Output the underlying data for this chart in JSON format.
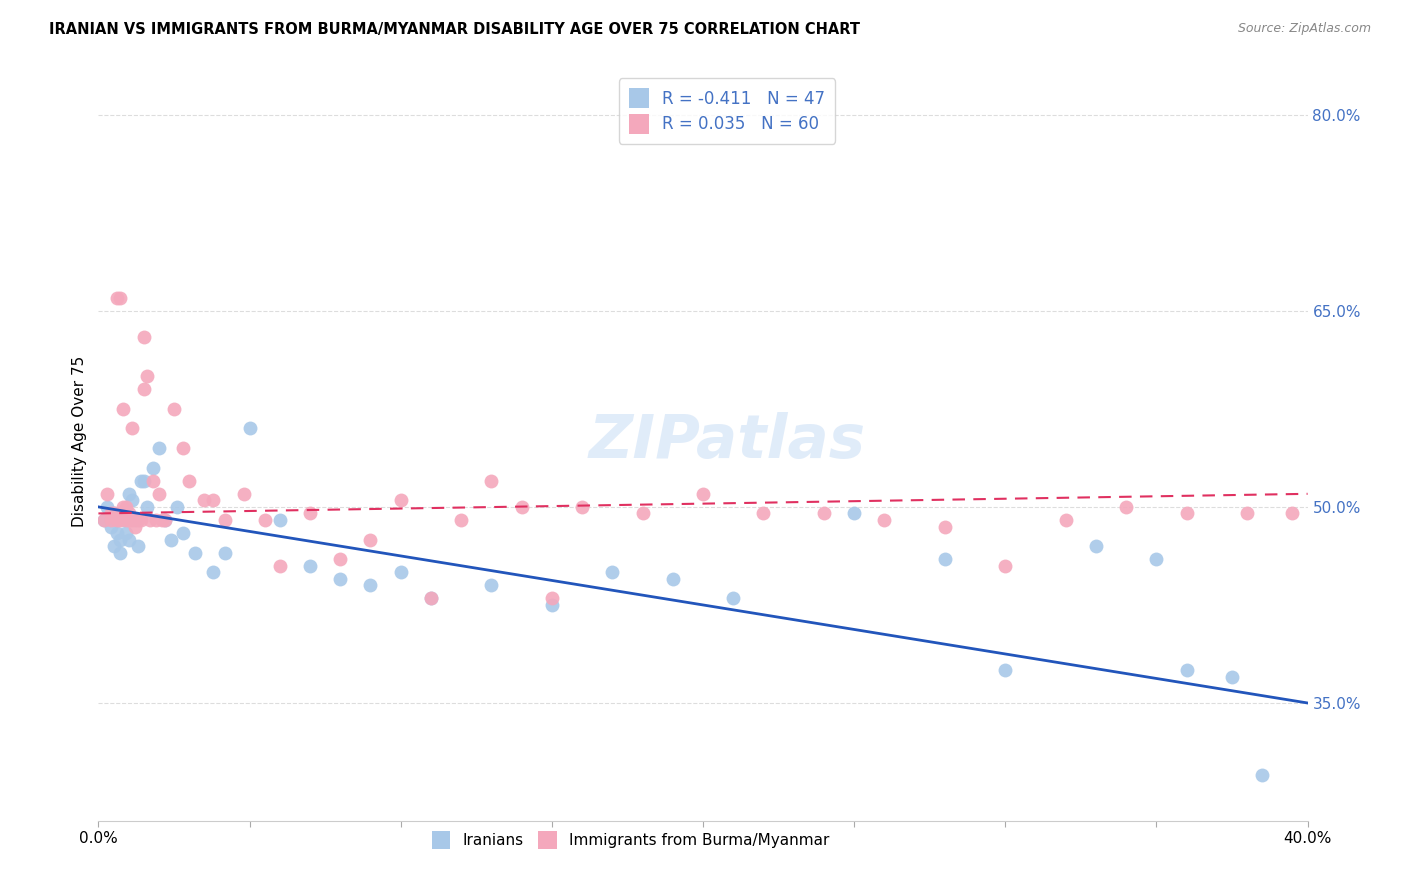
{
  "title": "IRANIAN VS IMMIGRANTS FROM BURMA/MYANMAR DISABILITY AGE OVER 75 CORRELATION CHART",
  "source": "Source: ZipAtlas.com",
  "ylabel": "Disability Age Over 75",
  "xlim": [
    0.0,
    0.4
  ],
  "ylim": [
    0.26,
    0.84
  ],
  "xticks": [
    0.0,
    0.05,
    0.1,
    0.15,
    0.2,
    0.25,
    0.3,
    0.35,
    0.4
  ],
  "xticklabels": [
    "0.0%",
    "",
    "",
    "",
    "",
    "",
    "",
    "",
    "40.0%"
  ],
  "yticks_right": [
    0.35,
    0.5,
    0.65,
    0.8
  ],
  "ytick_right_labels": [
    "35.0%",
    "50.0%",
    "65.0%",
    "80.0%"
  ],
  "blue_color": "#a8c8e8",
  "pink_color": "#f4a8bc",
  "blue_line_color": "#2255bb",
  "pink_line_color": "#e03060",
  "legend_blue_label": "R = -0.411   N = 47",
  "legend_pink_label": "R = 0.035   N = 60",
  "legend_iranians": "Iranians",
  "legend_burma": "Immigrants from Burma/Myanmar",
  "watermark": "ZIPatlas",
  "iranians_x": [
    0.002,
    0.003,
    0.004,
    0.005,
    0.005,
    0.006,
    0.007,
    0.007,
    0.008,
    0.009,
    0.01,
    0.01,
    0.011,
    0.012,
    0.013,
    0.014,
    0.015,
    0.016,
    0.018,
    0.02,
    0.022,
    0.024,
    0.026,
    0.028,
    0.032,
    0.038,
    0.042,
    0.05,
    0.06,
    0.07,
    0.08,
    0.09,
    0.1,
    0.11,
    0.13,
    0.15,
    0.17,
    0.19,
    0.21,
    0.25,
    0.28,
    0.3,
    0.33,
    0.35,
    0.36,
    0.375,
    0.385
  ],
  "iranians_y": [
    0.49,
    0.5,
    0.485,
    0.495,
    0.47,
    0.48,
    0.475,
    0.465,
    0.49,
    0.48,
    0.51,
    0.475,
    0.505,
    0.49,
    0.47,
    0.52,
    0.52,
    0.5,
    0.53,
    0.545,
    0.49,
    0.475,
    0.5,
    0.48,
    0.465,
    0.45,
    0.465,
    0.56,
    0.49,
    0.455,
    0.445,
    0.44,
    0.45,
    0.43,
    0.44,
    0.425,
    0.45,
    0.445,
    0.43,
    0.495,
    0.46,
    0.375,
    0.47,
    0.46,
    0.375,
    0.37,
    0.295
  ],
  "burma_x": [
    0.002,
    0.003,
    0.004,
    0.004,
    0.005,
    0.006,
    0.006,
    0.007,
    0.007,
    0.008,
    0.008,
    0.009,
    0.009,
    0.01,
    0.01,
    0.011,
    0.011,
    0.012,
    0.013,
    0.014,
    0.015,
    0.015,
    0.016,
    0.017,
    0.018,
    0.019,
    0.02,
    0.021,
    0.022,
    0.025,
    0.028,
    0.03,
    0.035,
    0.038,
    0.042,
    0.048,
    0.055,
    0.06,
    0.07,
    0.08,
    0.09,
    0.1,
    0.11,
    0.12,
    0.13,
    0.14,
    0.15,
    0.16,
    0.18,
    0.2,
    0.22,
    0.24,
    0.26,
    0.28,
    0.3,
    0.32,
    0.34,
    0.36,
    0.38,
    0.395
  ],
  "burma_y": [
    0.49,
    0.51,
    0.495,
    0.49,
    0.495,
    0.66,
    0.49,
    0.66,
    0.49,
    0.575,
    0.5,
    0.5,
    0.49,
    0.495,
    0.49,
    0.49,
    0.56,
    0.485,
    0.49,
    0.49,
    0.59,
    0.63,
    0.6,
    0.49,
    0.52,
    0.49,
    0.51,
    0.49,
    0.49,
    0.575,
    0.545,
    0.52,
    0.505,
    0.505,
    0.49,
    0.51,
    0.49,
    0.455,
    0.495,
    0.46,
    0.475,
    0.505,
    0.43,
    0.49,
    0.52,
    0.5,
    0.43,
    0.5,
    0.495,
    0.51,
    0.495,
    0.495,
    0.49,
    0.485,
    0.455,
    0.49,
    0.5,
    0.495,
    0.495,
    0.495
  ]
}
